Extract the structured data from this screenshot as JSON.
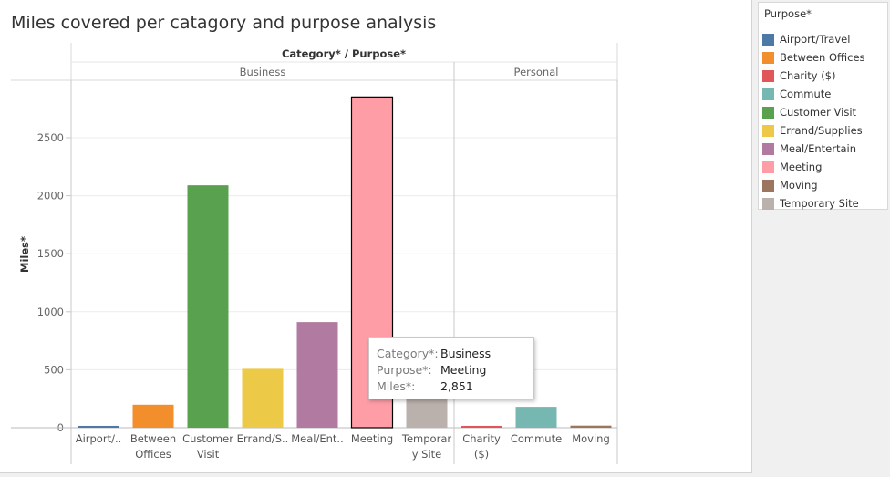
{
  "title": "Miles covered per catagory and purpose analysis",
  "legend": {
    "title": "Purpose*",
    "items": [
      {
        "label": "Airport/Travel",
        "color": "#4e79a7"
      },
      {
        "label": "Between Offices",
        "color": "#f28e2b"
      },
      {
        "label": "Charity ($)",
        "color": "#e15759"
      },
      {
        "label": "Commute",
        "color": "#76b7b2"
      },
      {
        "label": "Customer Visit",
        "color": "#59a14f"
      },
      {
        "label": "Errand/Supplies",
        "color": "#edc948"
      },
      {
        "label": "Meal/Entertain",
        "color": "#b07aa1"
      },
      {
        "label": "Meeting",
        "color": "#ff9da7"
      },
      {
        "label": "Moving",
        "color": "#9c755f"
      },
      {
        "label": "Temporary Site",
        "color": "#bab0ac"
      }
    ]
  },
  "tooltip": {
    "rows": [
      {
        "key": "Category*:",
        "value": "Business"
      },
      {
        "key": "Purpose*:",
        "value": "Meeting"
      },
      {
        "key": "Miles*:",
        "value": "2,851"
      }
    ]
  },
  "chart_data": {
    "type": "bar",
    "header_label": "Category* / Purpose*",
    "ylabel": "Miles*",
    "ylim": [
      0,
      2900
    ],
    "yticks": [
      0,
      500,
      1000,
      1500,
      2000,
      2500
    ],
    "grid": true,
    "groups": [
      {
        "name": "Business",
        "bars": [
          {
            "purpose": "Airport/Travel",
            "label": [
              "Airport/.."
            ],
            "value": 16,
            "color": "#4e79a7"
          },
          {
            "purpose": "Between Offices",
            "label": [
              "Between",
              "Offices"
            ],
            "value": 198,
            "color": "#f28e2b"
          },
          {
            "purpose": "Customer Visit",
            "label": [
              "Customer",
              "Visit"
            ],
            "value": 2090,
            "color": "#59a14f"
          },
          {
            "purpose": "Errand/Supplies",
            "label": [
              "Errand/S.."
            ],
            "value": 508,
            "color": "#edc948"
          },
          {
            "purpose": "Meal/Entertain",
            "label": [
              "Meal/Ent.."
            ],
            "value": 911,
            "color": "#b07aa1"
          },
          {
            "purpose": "Meeting",
            "label": [
              "Meeting"
            ],
            "value": 2851,
            "color": "#ff9da7",
            "highlighted": true
          },
          {
            "purpose": "Temporary Site",
            "label": [
              "Temporar",
              "y Site"
            ],
            "value": 523,
            "color": "#bab0ac"
          }
        ]
      },
      {
        "name": "Personal",
        "bars": [
          {
            "purpose": "Charity ($)",
            "label": [
              "Charity",
              "($)"
            ],
            "value": 16,
            "color": "#e15759"
          },
          {
            "purpose": "Commute",
            "label": [
              "Commute"
            ],
            "value": 180,
            "color": "#76b7b2"
          },
          {
            "purpose": "Moving",
            "label": [
              "Moving"
            ],
            "value": 18,
            "color": "#9c755f"
          }
        ]
      }
    ]
  }
}
